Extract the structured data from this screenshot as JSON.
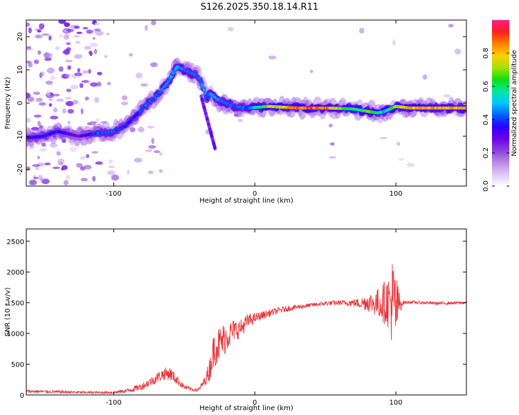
{
  "title": "S126.2025.350.18.14.R11",
  "chart_data": [
    {
      "type": "heatmap",
      "xlabel": "Height of straight line (km)",
      "ylabel": "Frequency (Hz)",
      "xlim": [
        -162,
        150
      ],
      "ylim": [
        -25,
        25
      ],
      "x_ticks": [
        -100,
        0,
        100
      ],
      "y_ticks": [
        -20,
        -10,
        0,
        10,
        20
      ],
      "colorbar": {
        "label": "Normalized spectral amplitude",
        "range": [
          0,
          1
        ],
        "ticks": [
          "0.0",
          "0.2",
          "0.4",
          "0.6",
          "0.8"
        ],
        "colormap": [
          "#ffffff",
          "#ddc6f2",
          "#b98ae6",
          "#8a40e0",
          "#6a00e8",
          "#2a00ff",
          "#0060ff",
          "#00c8ff",
          "#00e89a",
          "#10e010",
          "#a8e000",
          "#ffd000",
          "#ff8000",
          "#ff1e1e",
          "#ff1e8a"
        ]
      },
      "ridge": [
        [
          -162,
          -10.5,
          0.35
        ],
        [
          -150,
          -10,
          0.4
        ],
        [
          -140,
          -8.5,
          0.4
        ],
        [
          -125,
          -10,
          0.3
        ],
        [
          -110,
          -9,
          0.45
        ],
        [
          -100,
          -8.5,
          0.45
        ],
        [
          -92,
          -7,
          0.4
        ],
        [
          -85,
          -4,
          0.4
        ],
        [
          -78,
          -1,
          0.45
        ],
        [
          -70,
          2,
          0.45
        ],
        [
          -62,
          6,
          0.5
        ],
        [
          -55,
          11,
          0.5
        ],
        [
          -40,
          8,
          0.45
        ],
        [
          -36,
          4,
          0.5
        ],
        [
          -34,
          1,
          0.4
        ],
        [
          -32,
          3,
          0.5
        ],
        [
          -26,
          1,
          0.5
        ],
        [
          -15,
          -1,
          0.45
        ],
        [
          -5,
          -1.5,
          0.45
        ],
        [
          10,
          -1,
          0.75
        ],
        [
          30,
          -1.5,
          0.95
        ],
        [
          50,
          -1.5,
          0.95
        ],
        [
          60,
          -1.6,
          0.75
        ],
        [
          70,
          -1.8,
          0.6
        ],
        [
          80,
          -2.5,
          0.7
        ],
        [
          87,
          -3.0,
          0.7
        ],
        [
          92,
          -2.5,
          0.5
        ],
        [
          100,
          -1,
          0.75
        ],
        [
          110,
          -1.5,
          0.9
        ],
        [
          125,
          -1.5,
          0.9
        ],
        [
          148,
          -1.5,
          0.9
        ]
      ]
    },
    {
      "type": "line",
      "xlabel": "Height of straight line (km)",
      "ylabel": "SNR (10 * v/v)",
      "xlim": [
        -162,
        150
      ],
      "ylim": [
        0,
        2700
      ],
      "x_ticks": [
        -100,
        0,
        100
      ],
      "y_ticks": [
        0,
        500,
        1000,
        1500,
        2000,
        2500
      ],
      "series": [
        {
          "name": "SNR",
          "color": "#e8363a",
          "x": [
            -162,
            -140,
            -120,
            -100,
            -90,
            -80,
            -72,
            -65,
            -60,
            -55,
            -50,
            -45,
            -40,
            -35,
            -32,
            -30,
            -28,
            -25,
            -22,
            -20,
            -15,
            -10,
            -5,
            0,
            10,
            20,
            30,
            40,
            50,
            60,
            70,
            75,
            80,
            85,
            90,
            95,
            98,
            100,
            102,
            105,
            110,
            120,
            130,
            150
          ],
          "values": [
            60,
            50,
            40,
            40,
            70,
            140,
            240,
            340,
            350,
            240,
            130,
            90,
            80,
            240,
            420,
            650,
            800,
            820,
            900,
            950,
            1050,
            1080,
            1200,
            1250,
            1330,
            1390,
            1430,
            1460,
            1490,
            1500,
            1500,
            1490,
            1510,
            1490,
            1500,
            1520,
            1500,
            1380,
            1480,
            1500,
            1510,
            1500,
            1490,
            1500
          ],
          "noise": [
            25,
            25,
            20,
            20,
            35,
            60,
            80,
            100,
            110,
            80,
            40,
            30,
            30,
            80,
            200,
            250,
            330,
            300,
            280,
            250,
            180,
            150,
            120,
            80,
            60,
            50,
            40,
            35,
            40,
            40,
            60,
            90,
            150,
            200,
            300,
            450,
            800,
            650,
            250,
            30,
            25,
            25,
            25,
            25
          ]
        }
      ]
    }
  ]
}
